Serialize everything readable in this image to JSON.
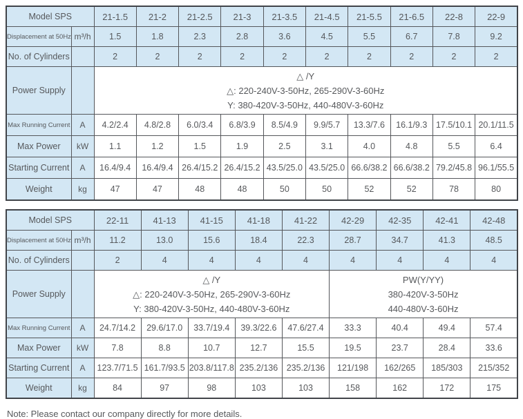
{
  "note": "Note: Please contact our company directly for more details.",
  "colors": {
    "cell_blue": "#d3e7f4",
    "cell_white": "#ffffff",
    "border": "#54565a",
    "text": "#56585b"
  },
  "tables": [
    {
      "id": "spec-table-1",
      "header_label": "Model SPS",
      "models": [
        "21-1.5",
        "21-2",
        "21-2.5",
        "21-3",
        "21-3.5",
        "21-4.5",
        "21-5.5",
        "21-6.5",
        "22-8",
        "22-9"
      ],
      "top_rows": [
        {
          "label": "Displacement at 50Hz",
          "small_label": true,
          "unit": "m³/h",
          "values": [
            "1.5",
            "1.8",
            "2.3",
            "2.8",
            "3.6",
            "4.5",
            "5.5",
            "6.7",
            "7.8",
            "9.2"
          ]
        },
        {
          "label": "No. of Cylinders",
          "small_label": false,
          "unit": "",
          "values": [
            "2",
            "2",
            "2",
            "2",
            "2",
            "2",
            "2",
            "2",
            "2",
            "2"
          ]
        }
      ],
      "power_row": {
        "label": "Power Supply",
        "groups": [
          {
            "span": 10,
            "lines": [
              "△ /Y",
              "△: 220-240V-3-50Hz, 265-290V-3-60Hz",
              "Y: 380-420V-3-50Hz, 440-480V-3-60Hz"
            ]
          }
        ]
      },
      "bottom_rows": [
        {
          "label": "Max Running Current",
          "small_label": true,
          "unit": "A",
          "values": [
            "4.2/2.4",
            "4.8/2.8",
            "6.0/3.4",
            "6.8/3.9",
            "8.5/4.9",
            "9.9/5.7",
            "13.3/7.6",
            "16.1/9.3",
            "17.5/10.1",
            "20.1/11.5"
          ]
        },
        {
          "label": "Max Power",
          "small_label": false,
          "unit": "kW",
          "values": [
            "1.1",
            "1.2",
            "1.5",
            "1.9",
            "2.5",
            "3.1",
            "4.0",
            "4.8",
            "5.5",
            "6.4"
          ]
        },
        {
          "label": "Starting Current",
          "small_label": false,
          "unit": "A",
          "values": [
            "16.4/9.4",
            "16.4/9.4",
            "26.4/15.2",
            "26.4/15.2",
            "43.5/25.0",
            "43.5/25.0",
            "66.6/38.2",
            "66.6/38.2",
            "79.2/45.8",
            "96.1/55.5"
          ]
        },
        {
          "label": "Weight",
          "small_label": false,
          "unit": "kg",
          "values": [
            "47",
            "47",
            "48",
            "48",
            "50",
            "50",
            "52",
            "52",
            "78",
            "80"
          ]
        }
      ]
    },
    {
      "id": "spec-table-2",
      "header_label": "Model SPS",
      "models": [
        "22-11",
        "41-13",
        "41-15",
        "41-18",
        "41-22",
        "42-29",
        "42-35",
        "42-41",
        "42-48"
      ],
      "top_rows": [
        {
          "label": "Displacement at 50Hz",
          "small_label": true,
          "unit": "m³/h",
          "values": [
            "11.2",
            "13.0",
            "15.6",
            "18.4",
            "22.3",
            "28.7",
            "34.7",
            "41.3",
            "48.5"
          ]
        },
        {
          "label": "No. of Cylinders",
          "small_label": false,
          "unit": "",
          "values": [
            "2",
            "4",
            "4",
            "4",
            "4",
            "4",
            "4",
            "4",
            "4"
          ]
        }
      ],
      "power_row": {
        "label": "Power Supply",
        "groups": [
          {
            "span": 5,
            "lines": [
              "△ /Y",
              "△: 220-240V-3-50Hz, 265-290V-3-60Hz",
              "Y: 380-420V-3-50Hz, 440-480V-3-60Hz"
            ]
          },
          {
            "span": 4,
            "lines": [
              "PW(Y/YY)",
              "380-420V-3-50Hz",
              "440-480V-3-60Hz"
            ]
          }
        ]
      },
      "bottom_rows": [
        {
          "label": "Max Running Current",
          "small_label": true,
          "unit": "A",
          "values": [
            "24.7/14.2",
            "29.6/17.0",
            "33.7/19.4",
            "39.3/22.6",
            "47.6/27.4",
            "33.3",
            "40.4",
            "49.4",
            "57.4"
          ]
        },
        {
          "label": "Max Power",
          "small_label": false,
          "unit": "kW",
          "values": [
            "7.8",
            "8.8",
            "10.7",
            "12.7",
            "15.5",
            "19.5",
            "23.7",
            "28.4",
            "33.6"
          ]
        },
        {
          "label": "Starting Current",
          "small_label": false,
          "unit": "A",
          "values": [
            "123.7/71.5",
            "161.7/93.5",
            "203.8/117.8",
            "235.2/136",
            "235.2/136",
            "121/198",
            "162/265",
            "185/303",
            "215/352"
          ]
        },
        {
          "label": "Weight",
          "small_label": false,
          "unit": "kg",
          "values": [
            "84",
            "97",
            "98",
            "103",
            "103",
            "158",
            "162",
            "172",
            "175"
          ]
        }
      ]
    }
  ]
}
